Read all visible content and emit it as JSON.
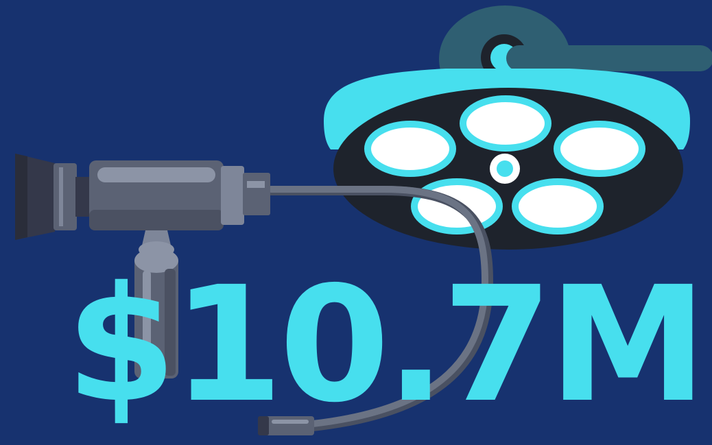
{
  "headline": {
    "amount_text": "$10.7M"
  },
  "colors": {
    "background": "#17326f",
    "accent": "#47dfee",
    "lamp_dark": "#1e232c",
    "lamp_arm": "#2f5f72",
    "camera_body": "#5b6274",
    "camera_light": "#7e8699",
    "camera_dark": "#34384a",
    "cable": "#6b7384"
  },
  "illustration": {
    "lamp_icon": "surgical-lamp-icon",
    "camera_icon": "endoscope-camera-icon"
  }
}
